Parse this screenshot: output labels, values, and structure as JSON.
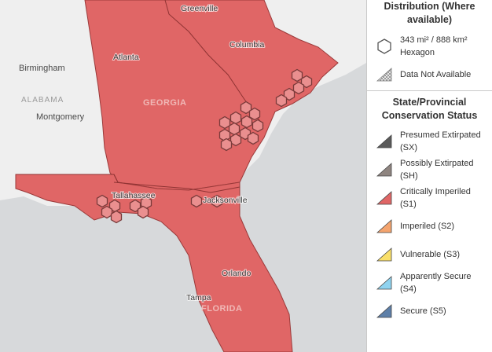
{
  "map": {
    "cities": {
      "greenville": "Greenville",
      "columbia": "Columbia",
      "birmingham": "Birmingham",
      "atlanta": "Atlanta",
      "montgomery": "Montgomery",
      "tallahassee": "Tallahassee",
      "jacksonville": "Jacksonville",
      "orlando": "Orlando",
      "tampa": "Tampa"
    },
    "states": {
      "alabama": "ALABAMA",
      "georgia": "GEORGIA",
      "florida": "FLORIDA"
    },
    "colors": {
      "range_fill": "#e06666",
      "range_stroke": "#9b3a3a",
      "hex_fill": "#ea8f8f",
      "hex_stroke": "#7a3a3a",
      "land": "#efefef",
      "water": "#d7d9db"
    }
  },
  "legend": {
    "distribution_heading": "Distribution (Where available)",
    "hexagon_size": "343 mi² / 888 km²",
    "hexagon_label": "Hexagon",
    "data_not_available": "Data Not Available",
    "status_heading": "State/Provincial Conservation Status",
    "statuses": [
      {
        "label": "Presumed Extirpated (SX)",
        "color": "#5a5a5a"
      },
      {
        "label": "Possibly Extirpated (SH)",
        "color": "#8f8580"
      },
      {
        "label": "Critically Imperiled (S1)",
        "color": "#e06666"
      },
      {
        "label": "Imperiled (S2)",
        "color": "#f4a46e"
      },
      {
        "label": "Vulnerable (S3)",
        "color": "#f9df6a"
      },
      {
        "label": "Apparently Secure (S4)",
        "color": "#8fd3f0"
      },
      {
        "label": "Secure (S5)",
        "color": "#5d7fa8"
      }
    ]
  }
}
